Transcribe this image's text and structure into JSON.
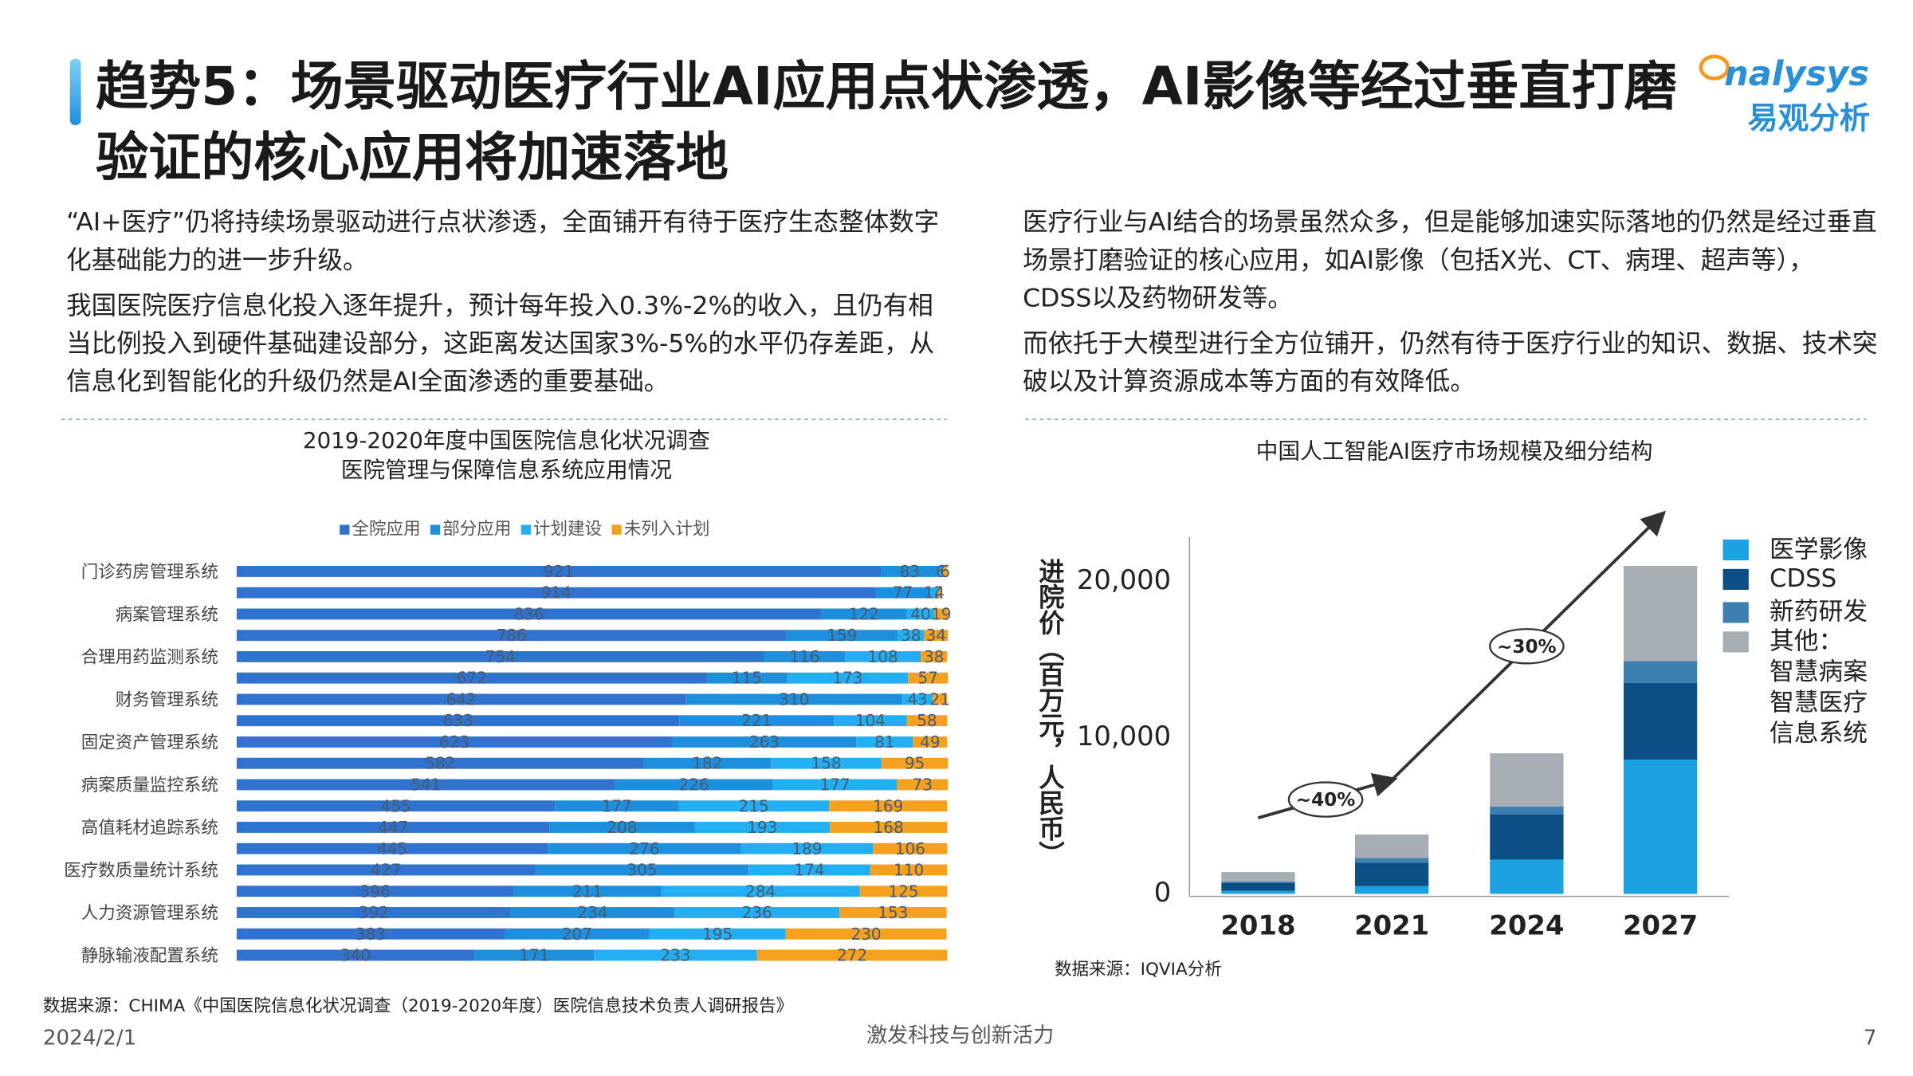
{
  "header": {
    "title": "趋势5：场景驱动医疗行业AI应用点状渗透，AI影像等经过垂直打磨验证的核心应用将加速落地",
    "logo_en": "nalysys",
    "logo_cn": "易观分析"
  },
  "left_text": [
    "“AI+医疗”仍将持续场景驱动进行点状渗透，全面铺开有待于医疗生态整体数字化基础能力的进一步升级。",
    "我国医院医疗信息化投入逐年提升，预计每年投入0.3%-2%的收入，且仍有相当比例投入到硬件基础建设部分，这距离发达国家3%-5%的水平仍存差距，从信息化到智能化的升级仍然是AI全面渗透的重要基础。"
  ],
  "right_text": [
    "医疗行业与AI结合的场景虽然众多，但是能够加速实际落地的仍然是经过垂直场景打磨验证的核心应用，如AI影像（包括X光、CT、病理、超声等），CDSS以及药物研发等。",
    "而依托于大模型进行全方位铺开，仍然有待于医疗行业的知识、数据、技术突破以及计算资源成本等方面的有效降低。"
  ],
  "chart_data": [
    {
      "type": "bar",
      "orientation": "horizontal",
      "stacked": true,
      "title": [
        "2019-2020年度中国医院信息化状况调查",
        "医院管理与保障信息系统应用情况"
      ],
      "categories": [
        "门诊药房管理系统",
        null,
        "病案管理系统",
        null,
        "合理用药监测系统",
        null,
        "财务管理系统",
        null,
        "固定资产管理系统",
        null,
        "病案质量监控系统",
        null,
        "高值耗材追踪系统",
        null,
        "医疗数质量统计系统",
        null,
        "人力资源管理系统",
        null,
        "静脉输液配置系统"
      ],
      "series": [
        {
          "name": "全院应用",
          "color": "#2f73cf",
          "values": [
            921,
            914,
            836,
            786,
            754,
            672,
            642,
            633,
            623,
            582,
            541,
            455,
            447,
            445,
            427,
            396,
            392,
            383,
            340
          ]
        },
        {
          "name": "部分应用",
          "color": "#1e8fdc",
          "values": [
            83,
            77,
            122,
            159,
            116,
            115,
            310,
            221,
            263,
            182,
            226,
            177,
            208,
            276,
            305,
            211,
            234,
            207,
            171
          ]
        },
        {
          "name": "计划建设",
          "color": "#22aef0",
          "values": [
            6,
            12,
            40,
            38,
            108,
            173,
            43,
            104,
            81,
            158,
            177,
            215,
            193,
            189,
            174,
            284,
            236,
            195,
            233
          ]
        },
        {
          "name": "未列入计划",
          "color": "#f5a11f",
          "values": [
            6,
            4,
            19,
            34,
            38,
            57,
            21,
            58,
            49,
            95,
            73,
            169,
            168,
            106,
            110,
            125,
            153,
            230,
            272
          ]
        }
      ],
      "source": "数据来源：CHIMA《中国医院信息化状况调查（2019-2020年度）医院信息技术负责人调研报告》"
    },
    {
      "type": "bar",
      "stacked": true,
      "title": "中国人工智能AI医疗市场规模及细分结构",
      "ylabel": "进院价（百万元，人民币）",
      "categories": [
        "2018",
        "2021",
        "2024",
        "2027"
      ],
      "series": [
        {
          "name": "医学影像",
          "color": "#1aa3e0",
          "values": [
            200,
            500,
            2200,
            8600
          ]
        },
        {
          "name": "CDSS",
          "color": "#0b4f86",
          "values": [
            500,
            1500,
            2900,
            4900
          ]
        },
        {
          "name": "新药研发",
          "color": "#3d7fae",
          "values": [
            100,
            300,
            500,
            1400
          ]
        },
        {
          "name": "其他：",
          "color": "#a6adb3",
          "values": [
            600,
            1500,
            3400,
            6100
          ]
        }
      ],
      "legend_note": [
        "智慧病案",
        "智慧医疗",
        "信息系统"
      ],
      "ylim": [
        0,
        23000
      ],
      "yticks": [
        0,
        {
          "value": 10000,
          "label": "10,000"
        },
        {
          "value": 20000,
          "label": "20,000"
        }
      ],
      "annotations": [
        "~40%",
        "~30%"
      ],
      "source": "数据来源：IQVIA分析"
    }
  ],
  "footer": {
    "date": "2024/2/1",
    "slogan": "激发科技与创新活力",
    "page": "7"
  }
}
